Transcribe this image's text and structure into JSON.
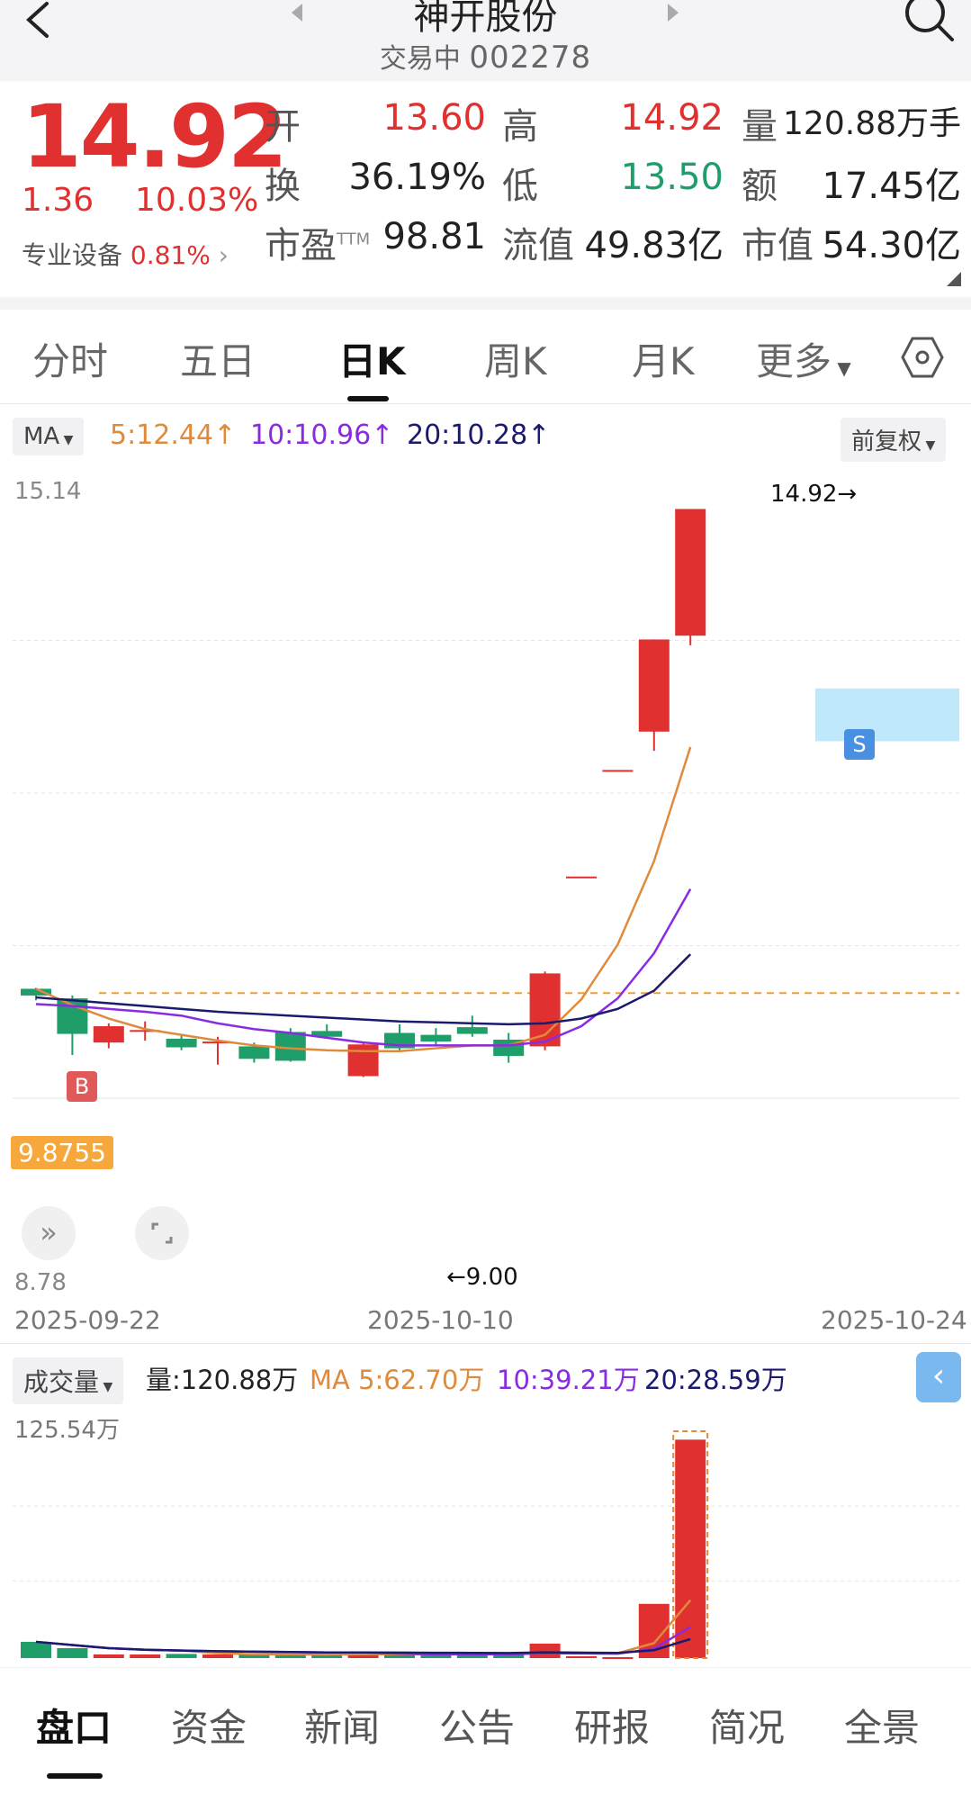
{
  "header": {
    "back_icon": "chevron-left-icon",
    "title": "神开股份",
    "status": "交易中",
    "code": "002278",
    "search_icon": "search-icon"
  },
  "quote": {
    "price": "14.92",
    "change": "1.36",
    "change_pct": "10.03%",
    "sector": "专业设备",
    "sector_pct": "0.81%",
    "fields": {
      "open_label": "开",
      "open": "13.60",
      "high_label": "高",
      "high": "14.92",
      "vol_label": "量",
      "vol": "120.88万手",
      "turnover_label": "换",
      "turnover": "36.19%",
      "low_label": "低",
      "low": "13.50",
      "amount_label": "额",
      "amount": "17.45亿",
      "pe_label": "市盈",
      "pe_sup": "TTM",
      "pe": "98.81",
      "float_label": "流值",
      "float": "49.83亿",
      "mcap_label": "市值",
      "mcap": "54.30亿"
    }
  },
  "tabs": [
    {
      "label": "分时"
    },
    {
      "label": "五日"
    },
    {
      "label": "日K",
      "active": true
    },
    {
      "label": "周K"
    },
    {
      "label": "月K"
    },
    {
      "label": "更多"
    }
  ],
  "settings_icon": "hexagon-settings-icon",
  "ma_bar": {
    "chip": "MA",
    "ma5": "5:12.44↑",
    "ma10": "10:10.96↑",
    "ma20": "20:10.28↑",
    "adjust": "前复权"
  },
  "kline": {
    "y_max_label": "15.14",
    "y_min_label": "8.78",
    "high_marker": "14.92→",
    "low_marker": "←9.00",
    "cost_label": "9.8755",
    "buy_marker": "B",
    "sell_marker": "S",
    "dates": [
      "2025-09-22",
      "2025-10-10",
      "2025-10-24"
    ]
  },
  "volume_bar": {
    "chip": "成交量",
    "vol": "量:120.88万",
    "ma5": "MA 5:62.70万",
    "ma10": "10:39.21万",
    "ma20": "20:28.59万",
    "y_max_label": "125.54万"
  },
  "bottom_nav": [
    {
      "label": "盘口",
      "active": true
    },
    {
      "label": "资金"
    },
    {
      "label": "新闻"
    },
    {
      "label": "公告"
    },
    {
      "label": "研报"
    },
    {
      "label": "简况"
    },
    {
      "label": "全景"
    }
  ],
  "colors": {
    "up": "#e03030",
    "down": "#1f9e6a",
    "ma5": "#e08a3c",
    "ma10": "#8a2be2",
    "ma20": "#1a1a6e",
    "cost_line": "#f0a030",
    "zone": "#bfe8fa"
  },
  "chart_data": {
    "type": "candlestick",
    "y_axis_range": [
      8.78,
      15.14
    ],
    "x_tick_labels": [
      "2025-09-22",
      "2025-10-10",
      "2025-10-24"
    ],
    "candles": [
      {
        "open": 9.92,
        "close": 9.85,
        "high": 9.93,
        "low": 9.8
      },
      {
        "open": 9.82,
        "close": 9.45,
        "high": 9.85,
        "low": 9.23
      },
      {
        "open": 9.36,
        "close": 9.53,
        "high": 9.56,
        "low": 9.3
      },
      {
        "open": 9.49,
        "close": 9.49,
        "high": 9.58,
        "low": 9.38
      },
      {
        "open": 9.4,
        "close": 9.31,
        "high": 9.45,
        "low": 9.28
      },
      {
        "open": 9.37,
        "close": 9.37,
        "high": 9.42,
        "low": 9.13
      },
      {
        "open": 9.32,
        "close": 9.19,
        "high": 9.36,
        "low": 9.15
      },
      {
        "open": 9.47,
        "close": 9.17,
        "high": 9.51,
        "low": 9.16
      },
      {
        "open": 9.48,
        "close": 9.42,
        "high": 9.55,
        "low": 9.4
      },
      {
        "open": 9.01,
        "close": 9.34,
        "high": 9.35,
        "low": 9.0
      },
      {
        "open": 9.46,
        "close": 9.3,
        "high": 9.55,
        "low": 9.28
      },
      {
        "open": 9.44,
        "close": 9.37,
        "high": 9.51,
        "low": 9.32
      },
      {
        "open": 9.52,
        "close": 9.45,
        "high": 9.64,
        "low": 9.42
      },
      {
        "open": 9.39,
        "close": 9.22,
        "high": 9.46,
        "low": 9.15
      },
      {
        "open": 9.32,
        "close": 10.08,
        "high": 10.1,
        "low": 9.28
      },
      {
        "open": 11.09,
        "close": 11.09,
        "high": 11.09,
        "low": 11.09
      },
      {
        "open": 12.2,
        "close": 12.2,
        "high": 12.2,
        "low": 12.2
      },
      {
        "open": 12.6,
        "close": 13.56,
        "high": 13.56,
        "low": 12.4
      },
      {
        "open": 13.6,
        "close": 14.92,
        "high": 14.92,
        "low": 13.5
      }
    ],
    "ma5": [
      9.92,
      9.75,
      9.61,
      9.5,
      9.44,
      9.38,
      9.33,
      9.3,
      9.28,
      9.27,
      9.27,
      9.3,
      9.33,
      9.33,
      9.44,
      9.81,
      10.38,
      11.25,
      12.44
    ],
    "ma10": [
      9.76,
      9.74,
      9.71,
      9.68,
      9.64,
      9.56,
      9.5,
      9.46,
      9.41,
      9.36,
      9.33,
      9.33,
      9.33,
      9.33,
      9.37,
      9.53,
      9.82,
      10.29,
      10.96
    ],
    "ma20": [
      9.83,
      9.8,
      9.77,
      9.74,
      9.71,
      9.68,
      9.66,
      9.64,
      9.62,
      9.6,
      9.58,
      9.57,
      9.56,
      9.55,
      9.56,
      9.61,
      9.71,
      9.9,
      10.28
    ],
    "volume_wan": [
      9.0,
      5.5,
      2.0,
      2.0,
      2.3,
      2.0,
      2.0,
      2.0,
      1.5,
      3.0,
      2.0,
      2.0,
      2.0,
      2.0,
      8.0,
      1.0,
      0.5,
      30.0,
      120.88
    ],
    "volume_y_max_wan": 125.54
  }
}
